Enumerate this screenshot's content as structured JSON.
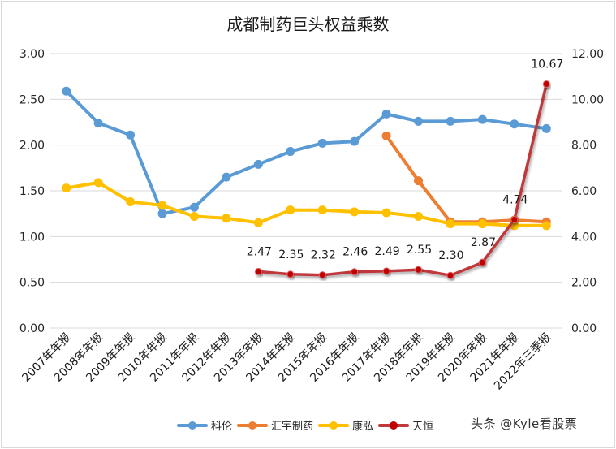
{
  "chart_data": {
    "type": "line",
    "title": "成都制药巨头权益乘数",
    "xlabel": "",
    "ylabel": "",
    "categories": [
      "2007年年报",
      "2008年年报",
      "2009年年报",
      "2010年年报",
      "2011年年报",
      "2012年年报",
      "2013年年报",
      "2014年年报",
      "2015年年报",
      "2016年年报",
      "2017年年报",
      "2018年年报",
      "2019年年报",
      "2020年年报",
      "2021年年报",
      "2022年三季报"
    ],
    "y_left": {
      "range": [
        0,
        3
      ],
      "ticks": [
        "0.00",
        "0.50",
        "1.00",
        "1.50",
        "2.00",
        "2.50",
        "3.00"
      ]
    },
    "y_right": {
      "range": [
        0,
        12
      ],
      "ticks": [
        "0.00",
        "2.00",
        "4.00",
        "6.00",
        "8.00",
        "10.00",
        "12.00"
      ]
    },
    "grid": true,
    "legend_position": "bottom",
    "series": [
      {
        "name": "科伦",
        "axis": "left",
        "color": "#5b9bd5",
        "values": [
          2.59,
          2.24,
          2.11,
          1.25,
          1.32,
          1.65,
          1.79,
          1.93,
          2.02,
          2.04,
          2.34,
          2.26,
          2.26,
          2.28,
          2.23,
          2.18
        ]
      },
      {
        "name": "汇宇制药",
        "axis": "left",
        "color": "#ed7d31",
        "values": [
          null,
          null,
          null,
          null,
          null,
          null,
          null,
          null,
          null,
          null,
          2.1,
          1.61,
          1.16,
          1.16,
          1.18,
          1.16
        ]
      },
      {
        "name": "康弘",
        "axis": "left",
        "color": "#ffc000",
        "values": [
          1.53,
          1.59,
          1.38,
          1.34,
          1.22,
          1.2,
          1.15,
          1.29,
          1.29,
          1.27,
          1.26,
          1.22,
          1.14,
          1.14,
          1.12,
          1.12
        ]
      },
      {
        "name": "天恒",
        "axis": "right",
        "color": "#c0393b",
        "marker_color": "#c00000",
        "values": [
          null,
          null,
          null,
          null,
          null,
          null,
          2.47,
          2.35,
          2.32,
          2.46,
          2.49,
          2.55,
          2.3,
          2.87,
          4.74,
          10.67
        ],
        "data_labels": [
          null,
          null,
          null,
          null,
          null,
          null,
          "2.47",
          "2.35",
          "2.32",
          "2.46",
          "2.49",
          "2.55",
          "2.30",
          "2.87",
          "4.74",
          "10.67"
        ]
      }
    ]
  },
  "watermark": "头条 @Kyle看股票"
}
